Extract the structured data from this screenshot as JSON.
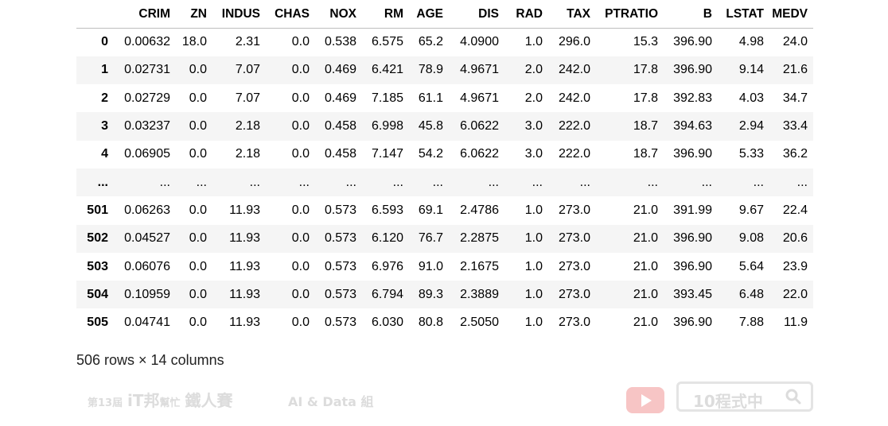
{
  "table": {
    "columns": [
      "",
      "CRIM",
      "ZN",
      "INDUS",
      "CHAS",
      "NOX",
      "RM",
      "AGE",
      "DIS",
      "RAD",
      "TAX",
      "PTRATIO",
      "B",
      "LSTAT",
      "MEDV"
    ],
    "rows": [
      [
        "0",
        "0.00632",
        "18.0",
        "2.31",
        "0.0",
        "0.538",
        "6.575",
        "65.2",
        "4.0900",
        "1.0",
        "296.0",
        "15.3",
        "396.90",
        "4.98",
        "24.0"
      ],
      [
        "1",
        "0.02731",
        "0.0",
        "7.07",
        "0.0",
        "0.469",
        "6.421",
        "78.9",
        "4.9671",
        "2.0",
        "242.0",
        "17.8",
        "396.90",
        "9.14",
        "21.6"
      ],
      [
        "2",
        "0.02729",
        "0.0",
        "7.07",
        "0.0",
        "0.469",
        "7.185",
        "61.1",
        "4.9671",
        "2.0",
        "242.0",
        "17.8",
        "392.83",
        "4.03",
        "34.7"
      ],
      [
        "3",
        "0.03237",
        "0.0",
        "2.18",
        "0.0",
        "0.458",
        "6.998",
        "45.8",
        "6.0622",
        "3.0",
        "222.0",
        "18.7",
        "394.63",
        "2.94",
        "33.4"
      ],
      [
        "4",
        "0.06905",
        "0.0",
        "2.18",
        "0.0",
        "0.458",
        "7.147",
        "54.2",
        "6.0622",
        "3.0",
        "222.0",
        "18.7",
        "396.90",
        "5.33",
        "36.2"
      ],
      [
        "...",
        "...",
        "...",
        "...",
        "...",
        "...",
        "...",
        "...",
        "...",
        "...",
        "...",
        "...",
        "...",
        "...",
        "..."
      ],
      [
        "501",
        "0.06263",
        "0.0",
        "11.93",
        "0.0",
        "0.573",
        "6.593",
        "69.1",
        "2.4786",
        "1.0",
        "273.0",
        "21.0",
        "391.99",
        "9.67",
        "22.4"
      ],
      [
        "502",
        "0.04527",
        "0.0",
        "11.93",
        "0.0",
        "0.573",
        "6.120",
        "76.7",
        "2.2875",
        "1.0",
        "273.0",
        "21.0",
        "396.90",
        "9.08",
        "20.6"
      ],
      [
        "503",
        "0.06076",
        "0.0",
        "11.93",
        "0.0",
        "0.573",
        "6.976",
        "91.0",
        "2.1675",
        "1.0",
        "273.0",
        "21.0",
        "396.90",
        "5.64",
        "23.9"
      ],
      [
        "504",
        "0.10959",
        "0.0",
        "11.93",
        "0.0",
        "0.573",
        "6.794",
        "89.3",
        "2.3889",
        "1.0",
        "273.0",
        "21.0",
        "393.45",
        "6.48",
        "22.0"
      ],
      [
        "505",
        "0.04741",
        "0.0",
        "11.93",
        "0.0",
        "0.573",
        "6.030",
        "80.8",
        "2.5050",
        "1.0",
        "273.0",
        "21.0",
        "396.90",
        "7.88",
        "11.9"
      ]
    ]
  },
  "summary": "506 rows × 14 columns",
  "watermark": {
    "edition": "第13屆",
    "brand": "iT邦",
    "brand_small": "幫忙",
    "event": "鐵人賽",
    "group": "AI & Data 組",
    "search_text": "10程式中"
  },
  "colors": {
    "stripe": "#f5f5f5",
    "header_border": "#bdbdbd",
    "youtube": "#f7c5c5"
  },
  "icons": {
    "video": "youtube-play-icon",
    "search": "magnifier-icon"
  }
}
